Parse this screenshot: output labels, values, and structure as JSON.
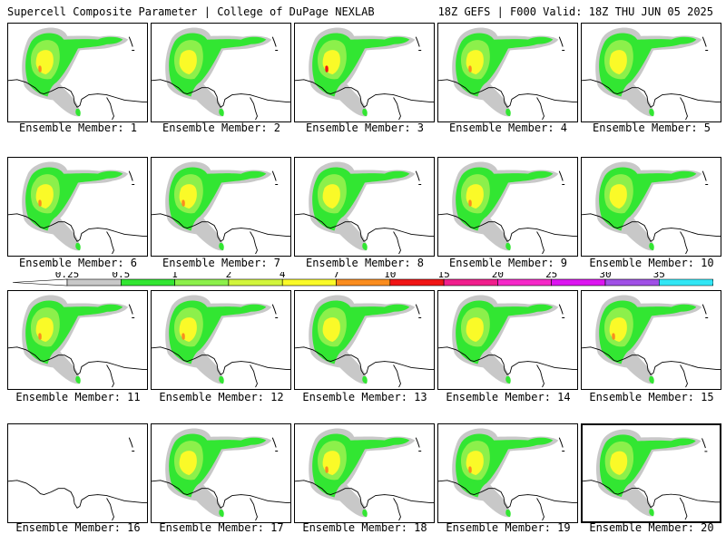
{
  "header": {
    "left": "Supercell Composite Parameter | College of DuPage NEXLAB",
    "right": "18Z GEFS | F000 Valid: 18Z THU JUN 05 2025"
  },
  "chart_data": {
    "type": "map-panels",
    "title": "Supercell Composite Parameter",
    "panel_label_prefix": "Ensemble Member:",
    "panels": [
      {
        "label": "Ensemble Member: 1",
        "max_category": "7"
      },
      {
        "label": "Ensemble Member: 2",
        "max_category": "4"
      },
      {
        "label": "Ensemble Member: 3",
        "max_category": "10"
      },
      {
        "label": "Ensemble Member: 4",
        "max_category": "7"
      },
      {
        "label": "Ensemble Member: 5",
        "max_category": "4"
      },
      {
        "label": "Ensemble Member: 6",
        "max_category": "7"
      },
      {
        "label": "Ensemble Member: 7",
        "max_category": "7"
      },
      {
        "label": "Ensemble Member: 8",
        "max_category": "4"
      },
      {
        "label": "Ensemble Member: 9",
        "max_category": "7"
      },
      {
        "label": "Ensemble Member: 10",
        "max_category": "4"
      },
      {
        "label": "Ensemble Member: 11",
        "max_category": "7"
      },
      {
        "label": "Ensemble Member: 12",
        "max_category": "7"
      },
      {
        "label": "Ensemble Member: 13",
        "max_category": "4"
      },
      {
        "label": "Ensemble Member: 14",
        "max_category": "4"
      },
      {
        "label": "Ensemble Member: 15",
        "max_category": "7"
      },
      {
        "label": "Ensemble Member: 16",
        "max_category": "none"
      },
      {
        "label": "Ensemble Member: 17",
        "max_category": "4"
      },
      {
        "label": "Ensemble Member: 18",
        "max_category": "7"
      },
      {
        "label": "Ensemble Member: 19",
        "max_category": "7"
      },
      {
        "label": "Ensemble Member: 20",
        "max_category": "4"
      }
    ],
    "colorbar": {
      "ticks": [
        "0.25",
        "0.5",
        "1",
        "2",
        "4",
        "7",
        "10",
        "15",
        "20",
        "25",
        "30",
        "35"
      ],
      "bins": [
        {
          "from": "0.25",
          "to": "0.5",
          "color": "#c8c8c8"
        },
        {
          "from": "0.5",
          "to": "1",
          "color": "#32e632"
        },
        {
          "from": "1",
          "to": "2",
          "color": "#8cf04b"
        },
        {
          "from": "2",
          "to": "4",
          "color": "#d2f53c"
        },
        {
          "from": "4",
          "to": "7",
          "color": "#fafa28"
        },
        {
          "from": "7",
          "to": "10",
          "color": "#fa8c1e"
        },
        {
          "from": "10",
          "to": "15",
          "color": "#f01414"
        },
        {
          "from": "15",
          "to": "20",
          "color": "#f01e8c"
        },
        {
          "from": "20",
          "to": "25",
          "color": "#f528c8"
        },
        {
          "from": "25",
          "to": "30",
          "color": "#dc14f0"
        },
        {
          "from": "30",
          "to": "35",
          "color": "#a050e6"
        },
        {
          "from": "35",
          "to": "",
          "color": "#32e6f5"
        }
      ]
    }
  }
}
